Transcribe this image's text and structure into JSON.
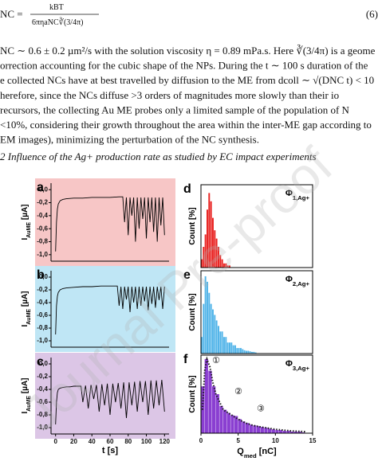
{
  "equation": {
    "lhs": "NC =",
    "numerator": "kBT",
    "denominator": "6πηaNC∛(3/4π)",
    "number": "(6)"
  },
  "paragraph": [
    "NC ∼ 0.6 ± 0.2 µm²/s with the solution viscosity η = 0.89 mPa.s. Here ∛(3/4π) is a geome",
    "orrection accounting for the cubic shape of the NPs. During the t ∼ 100 s duration of the",
    "e collected NCs have at best travelled by diffusion to the ME from dcoll ∼ √(DNC t) < 10",
    "herefore, since the NCs diffuse >3 orders of magnitudes more slowly than their io",
    "recursors, the collecting Au ME probes only a limited sample of the population of N",
    "<10%, considering their growth throughout the area within the inter-ME gap according to",
    "EM images), minimizing the perturbation of the NC synthesis."
  ],
  "heading": "2 Influence of the Ag+ production rate as studied by EC impact experiments",
  "watermark": "Journal Pre-proof",
  "chart_data": [
    {
      "type": "line",
      "panel_label": "a",
      "background": "#f7c6c6",
      "color": "#000000",
      "ylabel": {
        "main": "I",
        "sub": "AuME",
        "unit": " [µA]"
      },
      "xlim": [
        -5,
        125
      ],
      "ylim": [
        -1.1,
        0.1
      ],
      "yticks": [
        {
          "value": 0,
          "label": "0,0"
        },
        {
          "value": -0.2,
          "label": "-0,2"
        },
        {
          "value": -0.4,
          "label": "-0,4"
        },
        {
          "value": -0.6,
          "label": "-0,6"
        },
        {
          "value": -0.8,
          "label": "-0,8"
        },
        {
          "value": -1.0,
          "label": "-1,0"
        }
      ],
      "x": [
        0,
        1,
        2,
        3,
        5,
        8,
        12,
        20,
        30,
        40,
        50,
        60,
        70,
        74,
        76,
        78,
        80,
        82,
        84,
        86,
        88,
        90,
        92,
        94,
        96,
        98,
        100,
        102,
        104,
        106,
        108,
        110,
        112,
        114,
        116,
        118,
        120
      ],
      "values": [
        -0.95,
        -0.5,
        -0.3,
        -0.22,
        -0.17,
        -0.15,
        -0.14,
        -0.13,
        -0.13,
        -0.12,
        -0.12,
        -0.12,
        -0.11,
        -0.11,
        -0.5,
        -0.12,
        -0.7,
        -0.12,
        -0.4,
        -0.12,
        -0.8,
        -0.12,
        -0.6,
        -0.12,
        -0.45,
        -0.12,
        -0.75,
        -0.12,
        -0.5,
        -0.12,
        -0.65,
        -0.12,
        -0.8,
        -0.12,
        -0.55,
        -0.12,
        -0.7
      ]
    },
    {
      "type": "line",
      "panel_label": "b",
      "background": "#bfe6f5",
      "color": "#000000",
      "ylabel": {
        "main": "I",
        "sub": "AuME",
        "unit": " [µA]"
      },
      "xlim": [
        -5,
        125
      ],
      "ylim": [
        -1.1,
        0.1
      ],
      "yticks": [
        {
          "value": 0,
          "label": "0,0"
        },
        {
          "value": -0.2,
          "label": "-0,2"
        },
        {
          "value": -0.4,
          "label": "-0,4"
        },
        {
          "value": -0.6,
          "label": "-0,6"
        },
        {
          "value": -0.8,
          "label": "-0,8"
        },
        {
          "value": -1.0,
          "label": "-1,0"
        }
      ],
      "x": [
        0,
        1,
        2,
        3,
        5,
        8,
        12,
        20,
        30,
        40,
        50,
        60,
        66,
        68,
        70,
        72,
        74,
        76,
        78,
        80,
        82,
        84,
        86,
        88,
        90,
        92,
        94,
        96,
        98,
        100,
        102,
        104,
        106,
        108,
        110,
        112,
        114,
        116,
        118,
        120
      ],
      "values": [
        -0.9,
        -0.45,
        -0.3,
        -0.24,
        -0.2,
        -0.18,
        -0.17,
        -0.16,
        -0.15,
        -0.15,
        -0.14,
        -0.14,
        -0.14,
        -0.14,
        -0.45,
        -0.15,
        -0.5,
        -0.15,
        -0.35,
        -0.15,
        -0.55,
        -0.15,
        -0.4,
        -0.15,
        -0.5,
        -0.15,
        -0.45,
        -0.15,
        -0.38,
        -0.15,
        -0.52,
        -0.15,
        -0.42,
        -0.15,
        -0.48,
        -0.15,
        -0.36,
        -0.15,
        -0.5,
        -0.15
      ]
    },
    {
      "type": "line",
      "panel_label": "c",
      "background": "#dcc6e6",
      "color": "#000000",
      "ylabel": {
        "main": "I",
        "sub": "AuME",
        "unit": " [µA]"
      },
      "xlabel": "t [s]",
      "xlim": [
        -5,
        125
      ],
      "ylim": [
        -1.1,
        0.1
      ],
      "xticks": [
        0,
        20,
        40,
        60,
        80,
        100,
        120
      ],
      "yticks": [
        {
          "value": 0,
          "label": "0,0"
        },
        {
          "value": -0.2,
          "label": "-0,2"
        },
        {
          "value": -0.4,
          "label": "-0,4"
        },
        {
          "value": -0.6,
          "label": "-0,6"
        },
        {
          "value": -0.8,
          "label": "-0,8"
        },
        {
          "value": -1.0,
          "label": "-1,0"
        }
      ],
      "x": [
        0,
        1,
        2,
        3,
        5,
        8,
        12,
        16,
        20,
        24,
        28,
        30,
        33,
        36,
        39,
        42,
        45,
        48,
        51,
        54,
        57,
        60,
        63,
        66,
        69,
        72,
        75,
        78,
        81,
        84,
        87,
        90,
        93,
        96,
        99,
        102,
        105,
        108,
        111,
        114,
        117,
        120
      ],
      "values": [
        -0.95,
        -0.6,
        -0.45,
        -0.4,
        -0.38,
        -0.37,
        -0.36,
        -0.36,
        -0.35,
        -0.35,
        -0.35,
        -0.6,
        -0.34,
        -0.7,
        -0.33,
        -0.55,
        -0.33,
        -0.75,
        -0.32,
        -0.65,
        -0.31,
        -0.8,
        -0.31,
        -0.6,
        -0.3,
        -0.7,
        -0.29,
        -0.85,
        -0.29,
        -0.65,
        -0.28,
        -0.75,
        -0.27,
        -0.6,
        -0.27,
        -0.8,
        -0.26,
        -0.7,
        -0.26,
        -0.65,
        -0.25,
        -0.75
      ]
    },
    {
      "type": "histogram",
      "panel_label": "d",
      "color": "#e8201e",
      "label": {
        "main": "Φ",
        "sub": "1,Ag+"
      },
      "ylabel": "Count [%]",
      "xlim": [
        0,
        15
      ],
      "ylim": [
        0,
        20
      ],
      "bins": [
        0,
        0.25,
        0.5,
        0.75,
        1,
        1.25,
        1.5,
        1.75,
        2,
        2.25,
        2.5,
        2.75,
        3,
        3.25,
        3.5,
        3.75,
        4
      ],
      "values": [
        2,
        5,
        8,
        14,
        18,
        16,
        12,
        9,
        7,
        5,
        3,
        2,
        1,
        1,
        0.5,
        0.5
      ]
    },
    {
      "type": "histogram",
      "panel_label": "e",
      "color": "#4fb3e8",
      "label": {
        "main": "Φ",
        "sub": "2,Ag+"
      },
      "ylabel": "Count [%]",
      "xlim": [
        0,
        15
      ],
      "ylim": [
        0,
        15
      ],
      "bins": [
        0,
        0.25,
        0.5,
        0.75,
        1,
        1.25,
        1.5,
        1.75,
        2,
        2.25,
        2.5,
        2.75,
        3,
        3.25,
        3.5,
        3.75,
        4,
        4.25,
        4.5,
        4.75,
        5,
        5.25,
        5.5,
        5.75,
        6,
        6.25,
        6.5,
        6.75,
        7,
        7.25,
        7.5
      ],
      "values": [
        3,
        9,
        14,
        13,
        11,
        9,
        8,
        7,
        6,
        5,
        4,
        4,
        3,
        3,
        2,
        2,
        2,
        1.5,
        1.5,
        1,
        1,
        1,
        0.8,
        0.6,
        0.5,
        0.5,
        0.4,
        0.3,
        0.3,
        0.2
      ]
    },
    {
      "type": "histogram",
      "panel_label": "f",
      "color": "#8a3fd1",
      "label": {
        "main": "Φ",
        "sub": "3,Ag+"
      },
      "ylabel": "Count [%]",
      "xlabel": {
        "main": "Q",
        "sub": "med",
        "unit": " [nC]"
      },
      "xlim": [
        0,
        15
      ],
      "ylim": [
        0,
        10
      ],
      "xticks": [
        0,
        5,
        10,
        15
      ],
      "bins": [
        0,
        0.5,
        1,
        1.5,
        2,
        2.5,
        3,
        3.5,
        4,
        4.5,
        5,
        5.5,
        6,
        6.5,
        7,
        7.5,
        8,
        8.5,
        9,
        9.5,
        10,
        10.5,
        11,
        11.5,
        12,
        12.5,
        13,
        13.5,
        14
      ],
      "values": [
        6,
        9.5,
        8,
        6,
        5,
        3.5,
        3,
        2.6,
        2.3,
        2.2,
        1.8,
        1.5,
        1.3,
        1.1,
        1,
        0.9,
        0.8,
        0.7,
        0.6,
        0.5,
        0.4,
        0.4,
        0.3,
        0.3,
        0.2,
        0.2,
        0.2,
        0.1
      ],
      "fit": {
        "color": "#1a1a1a",
        "x": [
          0.2,
          0.5,
          0.8,
          1.2,
          1.6,
          2,
          2.5,
          3,
          3.5,
          4,
          5,
          6,
          7,
          8,
          10,
          12,
          14
        ],
        "values": [
          3,
          8,
          9.5,
          8.5,
          6.5,
          5,
          4,
          3,
          2.7,
          2.4,
          1.8,
          1.3,
          1,
          0.8,
          0.5,
          0.3,
          0.2
        ]
      },
      "annotations": [
        "①",
        "②",
        "③"
      ]
    }
  ]
}
